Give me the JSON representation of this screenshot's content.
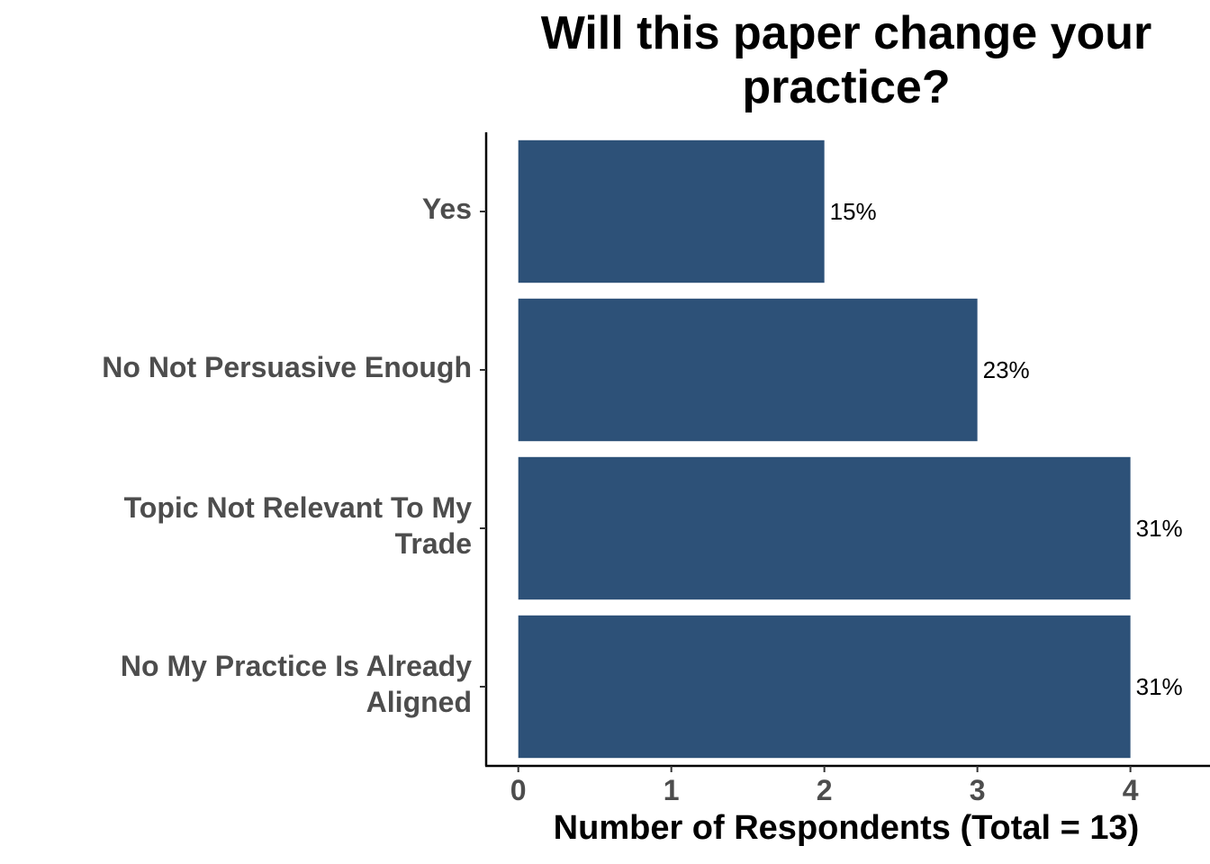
{
  "chart_data": {
    "type": "bar",
    "orientation": "horizontal",
    "title": "Will this paper change your\npractice?",
    "x_label": "Number of Respondents (Total = 13)",
    "categories": [
      "Yes",
      "No Not Persuasive Enough",
      "Topic Not Relevant To My\nTrade",
      "No My Practice Is Already\nAligned"
    ],
    "values": [
      2,
      3,
      4,
      4
    ],
    "value_labels": [
      "15%",
      "23%",
      "31%",
      "31%"
    ],
    "color": "#2d5178",
    "xlim": [
      -0.21,
      4.52
    ],
    "xticks": [
      0,
      1,
      2,
      3,
      4
    ],
    "grid": false
  }
}
